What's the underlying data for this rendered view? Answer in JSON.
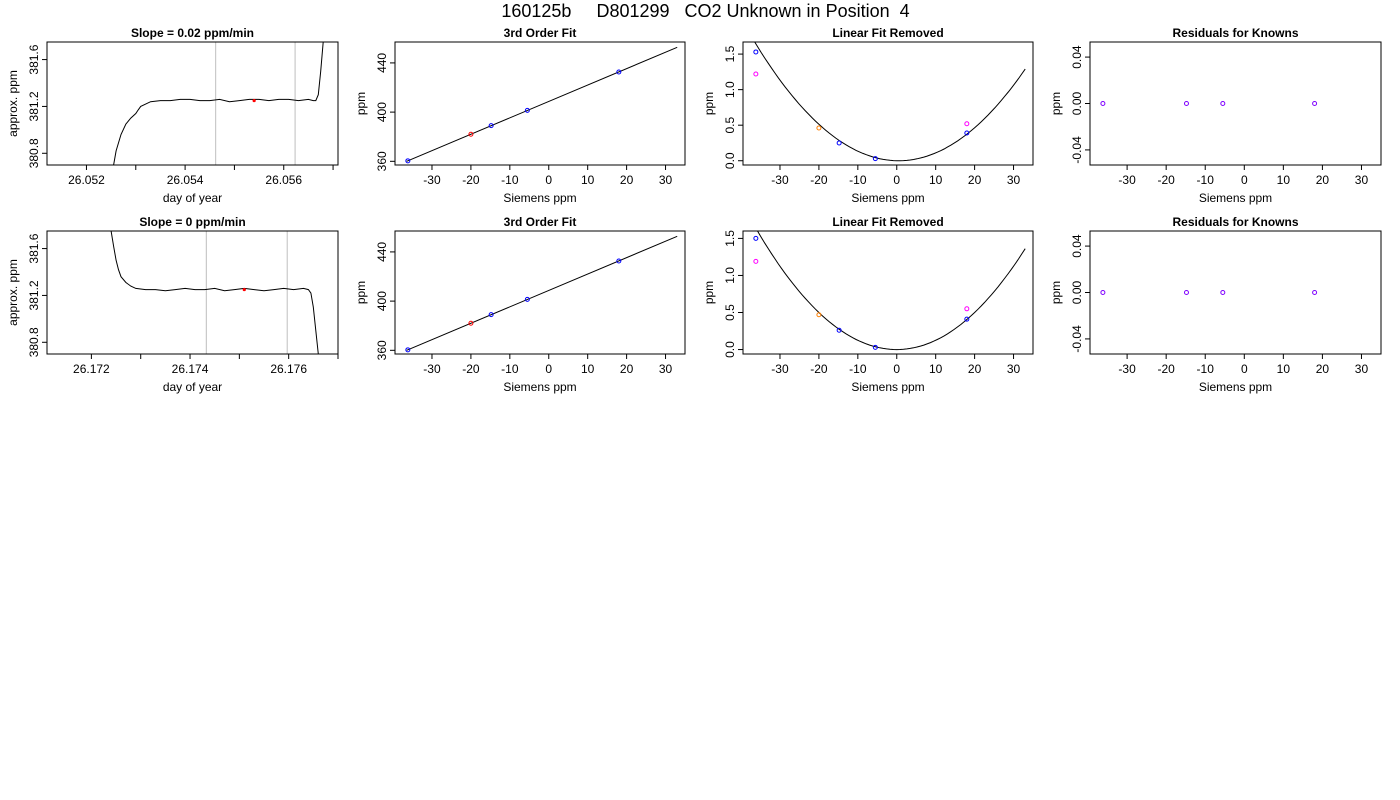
{
  "page": {
    "title": "160125b     D801299   CO2 Unknown in Position  4"
  },
  "colors": {
    "axis": "#000000",
    "curve": "#000000",
    "vline": "#bebebe",
    "blue": "#0000ff",
    "red": "#ff0000",
    "orange": "#ff7f00",
    "magenta": "#ff00ff",
    "purple": "#7f00ff"
  },
  "chart_data": [
    {
      "type": "line",
      "title": "Slope =  0.02  ppm/min",
      "xlabel": "day of year",
      "ylabel": "approx. ppm",
      "xlim": [
        26.0512,
        26.0571
      ],
      "ylim": [
        380.7,
        381.75
      ],
      "xticks": [
        26.052,
        26.053,
        26.054,
        26.055,
        26.056,
        26.057
      ],
      "xtick_labels": [
        "26.052",
        "",
        "26.054",
        "",
        "26.056",
        ""
      ],
      "yticks": [
        380.8,
        381.2,
        381.6
      ],
      "ytick_labels": [
        "380.8",
        "381.2",
        "381.6"
      ],
      "series": [
        {
          "values_x": [
            26.05255,
            26.0526,
            26.0527,
            26.0528,
            26.0529,
            26.053,
            26.05305,
            26.0531,
            26.0533,
            26.0535,
            26.0537,
            26.0539,
            26.0541,
            26.0543,
            26.0545,
            26.0547,
            26.0549,
            26.0551,
            26.0553,
            26.0555,
            26.0557,
            26.0559,
            26.0561,
            26.0563,
            26.0565,
            26.0566,
            26.05665,
            26.0567,
            26.05675,
            26.0568
          ],
          "values_y": [
            380.7,
            380.82,
            380.96,
            381.05,
            381.1,
            381.14,
            381.17,
            381.2,
            381.24,
            381.25,
            381.25,
            381.26,
            381.26,
            381.25,
            381.25,
            381.26,
            381.24,
            381.25,
            381.26,
            381.26,
            381.25,
            381.26,
            381.26,
            381.25,
            381.26,
            381.25,
            381.25,
            381.3,
            381.5,
            381.75
          ]
        }
      ],
      "vlines": [
        26.05462,
        26.05623
      ],
      "marker": {
        "x": 26.0554,
        "y": 381.25
      }
    },
    {
      "type": "scatter",
      "title": "3rd Order Fit",
      "xlabel": "Siemens ppm",
      "ylabel": "ppm",
      "xlim": [
        -39.5,
        35
      ],
      "ylim": [
        357,
        457
      ],
      "xticks": [
        -30,
        -20,
        -10,
        0,
        10,
        20,
        30
      ],
      "xtick_labels": [
        "-30",
        "-20",
        "-10",
        "0",
        "10",
        "20",
        "30"
      ],
      "yticks": [
        360,
        400,
        440
      ],
      "ytick_labels": [
        "360",
        "400",
        "440"
      ],
      "line": {
        "x": [
          -36.5,
          33
        ],
        "y": [
          360.0,
          452.7
        ]
      },
      "points": [
        {
          "x": -36.2,
          "y": 360.4,
          "color": "blue"
        },
        {
          "x": -14.8,
          "y": 389.0,
          "color": "blue"
        },
        {
          "x": -5.5,
          "y": 401.4,
          "color": "blue"
        },
        {
          "x": 18.0,
          "y": 432.6,
          "color": "blue"
        },
        {
          "x": -20.0,
          "y": 382.0,
          "color": "red"
        }
      ]
    },
    {
      "type": "scatter",
      "title": "Linear Fit Removed",
      "xlabel": "Siemens ppm",
      "ylabel": "ppm",
      "xlim": [
        -39.5,
        35
      ],
      "ylim": [
        -0.06,
        1.67
      ],
      "xticks": [
        -30,
        -20,
        -10,
        0,
        10,
        20,
        30
      ],
      "xtick_labels": [
        "-30",
        "-20",
        "-10",
        "0",
        "10",
        "20",
        "30"
      ],
      "yticks": [
        0.0,
        0.5,
        1.0,
        1.5
      ],
      "ytick_labels": [
        "0.0",
        "0.5",
        "1.0",
        "1.5"
      ],
      "curve": {
        "vertex_x": 0.5,
        "scale": 0.00122,
        "x_range": [
          -36.5,
          33
        ]
      },
      "points": [
        {
          "x": -36.2,
          "y": 1.53,
          "color": "blue"
        },
        {
          "x": -14.8,
          "y": 0.25,
          "color": "blue"
        },
        {
          "x": -5.5,
          "y": 0.03,
          "color": "blue"
        },
        {
          "x": 18.0,
          "y": 0.39,
          "color": "blue"
        },
        {
          "x": -20.0,
          "y": 0.46,
          "color": "orange"
        },
        {
          "x": -36.2,
          "y": 1.22,
          "color": "magenta"
        },
        {
          "x": 18.0,
          "y": 0.52,
          "color": "magenta"
        }
      ]
    },
    {
      "type": "scatter",
      "title": "Residuals for Knowns",
      "xlabel": "Siemens ppm",
      "ylabel": "ppm",
      "xlim": [
        -39.5,
        35
      ],
      "ylim": [
        -0.053,
        0.053
      ],
      "xticks": [
        -30,
        -20,
        -10,
        0,
        10,
        20,
        30
      ],
      "xtick_labels": [
        "-30",
        "-20",
        "-10",
        "0",
        "10",
        "20",
        "30"
      ],
      "yticks": [
        -0.04,
        0.0,
        0.04
      ],
      "ytick_labels": [
        "-0.04",
        "0.00",
        "0.04"
      ],
      "points": [
        {
          "x": -36.2,
          "y": 0.0,
          "color": "purple"
        },
        {
          "x": -14.8,
          "y": 0.0,
          "color": "purple"
        },
        {
          "x": -5.5,
          "y": 0.0,
          "color": "purple"
        },
        {
          "x": 18.0,
          "y": 0.0,
          "color": "purple"
        }
      ]
    },
    {
      "type": "line",
      "title": "Slope =  0  ppm/min",
      "xlabel": "day of year",
      "ylabel": "approx. ppm",
      "xlim": [
        26.1711,
        26.177
      ],
      "ylim": [
        380.7,
        381.75
      ],
      "xticks": [
        26.172,
        26.173,
        26.174,
        26.175,
        26.176,
        26.177
      ],
      "xtick_labels": [
        "26.172",
        "",
        "26.174",
        "",
        "26.176",
        ""
      ],
      "yticks": [
        380.8,
        381.2,
        381.6
      ],
      "ytick_labels": [
        "380.8",
        "381.2",
        "381.6"
      ],
      "series": [
        {
          "values_x": [
            26.1724,
            26.17245,
            26.1725,
            26.17255,
            26.1726,
            26.1727,
            26.1728,
            26.1729,
            26.1731,
            26.1733,
            26.1735,
            26.1737,
            26.1739,
            26.1741,
            26.1743,
            26.1745,
            26.1747,
            26.1749,
            26.1751,
            26.1753,
            26.1755,
            26.1757,
            26.1759,
            26.1761,
            26.1763,
            26.1764,
            26.17645,
            26.1765,
            26.17655,
            26.1766
          ],
          "values_y": [
            381.75,
            381.62,
            381.5,
            381.42,
            381.36,
            381.31,
            381.28,
            381.26,
            381.25,
            381.25,
            381.24,
            381.25,
            381.26,
            381.25,
            381.25,
            381.26,
            381.24,
            381.25,
            381.26,
            381.25,
            381.24,
            381.25,
            381.26,
            381.25,
            381.26,
            381.25,
            381.22,
            381.1,
            380.9,
            380.7
          ]
        }
      ],
      "vlines": [
        26.17433,
        26.17597
      ],
      "marker": {
        "x": 26.1751,
        "y": 381.25
      }
    },
    {
      "type": "scatter",
      "title": "3rd Order Fit",
      "xlabel": "Siemens ppm",
      "ylabel": "ppm",
      "xlim": [
        -39.5,
        35
      ],
      "ylim": [
        357,
        457
      ],
      "xticks": [
        -30,
        -20,
        -10,
        0,
        10,
        20,
        30
      ],
      "xtick_labels": [
        "-30",
        "-20",
        "-10",
        "0",
        "10",
        "20",
        "30"
      ],
      "yticks": [
        360,
        400,
        440
      ],
      "ytick_labels": [
        "360",
        "400",
        "440"
      ],
      "line": {
        "x": [
          -36.5,
          33
        ],
        "y": [
          360.0,
          452.7
        ]
      },
      "points": [
        {
          "x": -36.2,
          "y": 360.4,
          "color": "blue"
        },
        {
          "x": -14.8,
          "y": 389.0,
          "color": "blue"
        },
        {
          "x": -5.5,
          "y": 401.4,
          "color": "blue"
        },
        {
          "x": 18.0,
          "y": 432.6,
          "color": "blue"
        },
        {
          "x": -20.0,
          "y": 382.0,
          "color": "red"
        }
      ]
    },
    {
      "type": "scatter",
      "title": "Linear Fit Removed",
      "xlabel": "Siemens ppm",
      "ylabel": "ppm",
      "xlim": [
        -39.5,
        35
      ],
      "ylim": [
        -0.06,
        1.6
      ],
      "xticks": [
        -30,
        -20,
        -10,
        0,
        10,
        20,
        30
      ],
      "xtick_labels": [
        "-30",
        "-20",
        "-10",
        "0",
        "10",
        "20",
        "30"
      ],
      "yticks": [
        0.0,
        0.5,
        1.0,
        1.5
      ],
      "ytick_labels": [
        "0.0",
        "0.5",
        "1.0",
        "1.5"
      ],
      "curve": {
        "vertex_x": 0.0,
        "scale": 0.00125,
        "x_range": [
          -36.5,
          33
        ]
      },
      "points": [
        {
          "x": -36.2,
          "y": 1.5,
          "color": "blue"
        },
        {
          "x": -14.8,
          "y": 0.26,
          "color": "blue"
        },
        {
          "x": -5.5,
          "y": 0.03,
          "color": "blue"
        },
        {
          "x": 18.0,
          "y": 0.41,
          "color": "blue"
        },
        {
          "x": -20.0,
          "y": 0.47,
          "color": "orange"
        },
        {
          "x": -36.2,
          "y": 1.19,
          "color": "magenta"
        },
        {
          "x": 18.0,
          "y": 0.55,
          "color": "magenta"
        }
      ]
    },
    {
      "type": "scatter",
      "title": "Residuals for Knowns",
      "xlabel": "Siemens ppm",
      "ylabel": "ppm",
      "xlim": [
        -39.5,
        35
      ],
      "ylim": [
        -0.053,
        0.053
      ],
      "xticks": [
        -30,
        -20,
        -10,
        0,
        10,
        20,
        30
      ],
      "xtick_labels": [
        "-30",
        "-20",
        "-10",
        "0",
        "10",
        "20",
        "30"
      ],
      "yticks": [
        -0.04,
        0.0,
        0.04
      ],
      "ytick_labels": [
        "-0.04",
        "0.00",
        "0.04"
      ],
      "points": [
        {
          "x": -36.2,
          "y": 0.0,
          "color": "purple"
        },
        {
          "x": -14.8,
          "y": 0.0,
          "color": "purple"
        },
        {
          "x": -5.5,
          "y": 0.0,
          "color": "purple"
        },
        {
          "x": 18.0,
          "y": 0.0,
          "color": "purple"
        }
      ]
    }
  ]
}
